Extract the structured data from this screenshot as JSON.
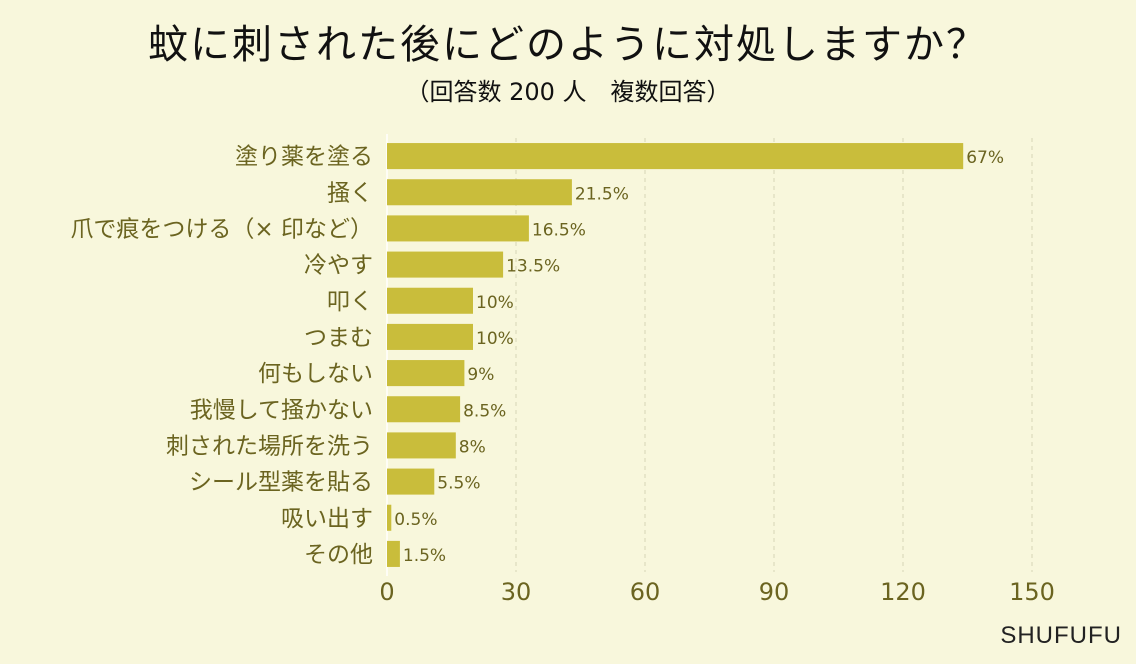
{
  "header": {
    "title": "蚊に刺された後にどのように対処しますか？",
    "subtitle": "（回答数 200 人　複数回答）"
  },
  "brand": "SHUFUFU",
  "colors": {
    "bar": "#c9bd3b",
    "background": "#f8f7dc",
    "label": "#6b6420"
  },
  "chart_data": {
    "type": "bar",
    "orientation": "horizontal",
    "title": "蚊に刺された後にどのように対処しますか？",
    "subtitle": "（回答数 200 人　複数回答）",
    "categories": [
      "塗り薬を塗る",
      "掻く",
      "爪で痕をつける（× 印など）",
      "冷やす",
      "叩く",
      "つまむ",
      "何もしない",
      "我慢して掻かない",
      "刺された場所を洗う",
      "シール型薬を貼る",
      "吸い出す",
      "その他"
    ],
    "values": [
      134,
      43,
      33,
      27,
      20,
      20,
      18,
      17,
      16,
      11,
      1,
      3
    ],
    "value_labels": [
      "67%",
      "21.5%",
      "16.5%",
      "13.5%",
      "10%",
      "10%",
      "9%",
      "8.5%",
      "8%",
      "5.5%",
      "0.5%",
      "1.5%"
    ],
    "xlim": [
      0,
      150
    ],
    "xticks": [
      "0",
      "30",
      "60",
      "90",
      "120",
      "150"
    ],
    "grid": true,
    "legend": "none"
  }
}
